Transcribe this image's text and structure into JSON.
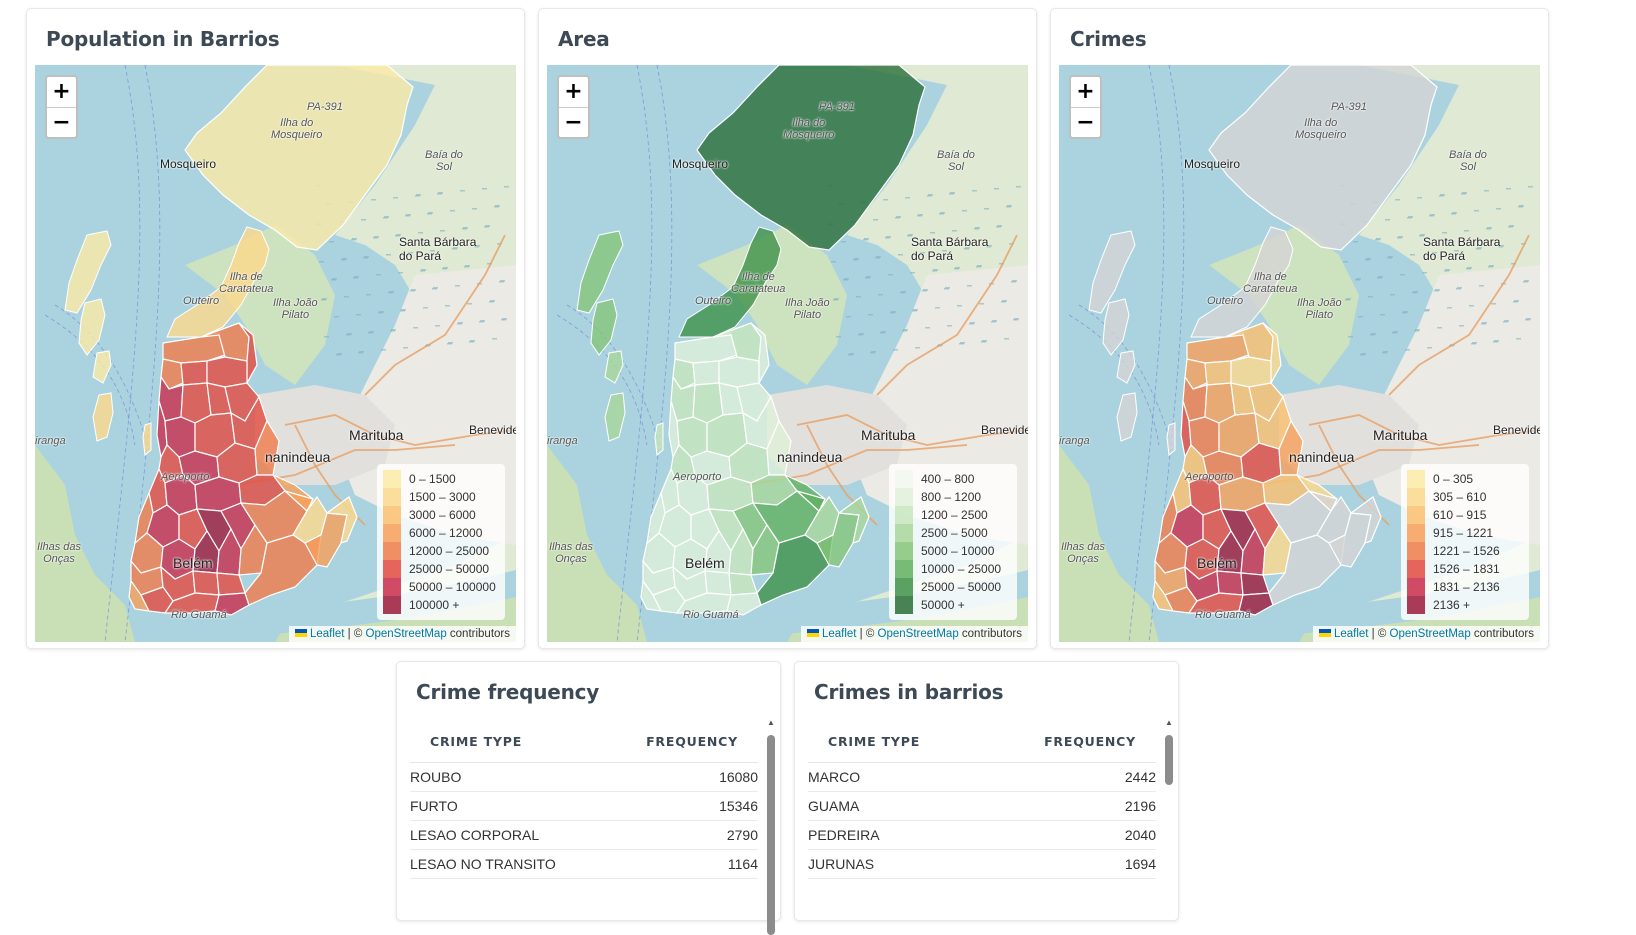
{
  "maps": [
    {
      "title": "Population in Barrios",
      "legend": [
        {
          "label": "0 – 1500",
          "color": "#fbeaa6"
        },
        {
          "label": "1500 – 3000",
          "color": "#fcd88b"
        },
        {
          "label": "3000 – 6000",
          "color": "#fbbf6e"
        },
        {
          "label": "6000 – 12000",
          "color": "#f8a05a"
        },
        {
          "label": "12000 – 25000",
          "color": "#f07c4a"
        },
        {
          "label": "25000 – 50000",
          "color": "#e34a3f"
        },
        {
          "label": "50000 – 100000",
          "color": "#c92d4b"
        },
        {
          "label": "100000 +",
          "color": "#9e1a3a"
        }
      ],
      "fill_scheme": "population"
    },
    {
      "title": "Area",
      "legend": [
        {
          "label": "400 – 800",
          "color": "#f1f8ee"
        },
        {
          "label": "800 – 1200",
          "color": "#dff0d8"
        },
        {
          "label": "1200 – 2500",
          "color": "#c7e6bc"
        },
        {
          "label": "2500 – 5000",
          "color": "#a8d79a"
        },
        {
          "label": "5000 – 10000",
          "color": "#86c57a"
        },
        {
          "label": "10000 – 25000",
          "color": "#62b060"
        },
        {
          "label": "25000 – 50000",
          "color": "#3f9248"
        },
        {
          "label": "50000 +",
          "color": "#2a6e38"
        }
      ],
      "fill_scheme": "area"
    },
    {
      "title": "Crimes",
      "legend": [
        {
          "label": "0 – 305",
          "color": "#fbeaa6"
        },
        {
          "label": "305 – 610",
          "color": "#fcd88b"
        },
        {
          "label": "610 – 915",
          "color": "#fbbf6e"
        },
        {
          "label": "915 – 1221",
          "color": "#f8a05a"
        },
        {
          "label": "1221 – 1526",
          "color": "#f07c4a"
        },
        {
          "label": "1526 – 1831",
          "color": "#e34a3f"
        },
        {
          "label": "1831 – 2136",
          "color": "#c92d4b"
        },
        {
          "label": "2136 +",
          "color": "#9e1a3a"
        }
      ],
      "fill_scheme": "crimes"
    }
  ],
  "map_labels": {
    "island": "Ilha do\nMosqueiro",
    "mosqueiro": "Mosqueiro",
    "road": "PA-391",
    "baia_sol": "Baía do\nSol",
    "santa_barbara": "Santa Bárbara\ndo Pará",
    "caratateua": "Ilha de\nCaratateua",
    "outeiro": "Outeiro",
    "ilha_joao": "Ilha João\nPilato",
    "marituba": "Marituba",
    "benevide": "Benevide",
    "ananindeua": "nanindeua",
    "iranga": "iranga",
    "oncas": "Ilhas das\nOnças",
    "rio_guama": "Rio Guamá",
    "aeroporto": "Aeroporto",
    "belem": "Belém"
  },
  "attribution": {
    "leaflet": "Leaflet",
    "sep": " | © ",
    "osm": "OpenStreetMap",
    "rest": " contributors"
  },
  "zoom": {
    "plus": "+",
    "minus": "−"
  },
  "tables": [
    {
      "title": "Crime frequency",
      "col1": "CRIME TYPE",
      "col2": "FREQUENCY",
      "rows": [
        {
          "name": "ROUBO",
          "value": "16080"
        },
        {
          "name": "FURTO",
          "value": "15346"
        },
        {
          "name": "LESAO CORPORAL",
          "value": "2790"
        },
        {
          "name": "LESAO NO TRANSITO",
          "value": "1164"
        }
      ]
    },
    {
      "title": "Crimes in barrios",
      "col1": "CRIME TYPE",
      "col2": "FREQUENCY",
      "rows": [
        {
          "name": "MARCO",
          "value": "2442"
        },
        {
          "name": "GUAMA",
          "value": "2196"
        },
        {
          "name": "PEDREIRA",
          "value": "2040"
        },
        {
          "name": "JURUNAS",
          "value": "1694"
        }
      ]
    }
  ]
}
